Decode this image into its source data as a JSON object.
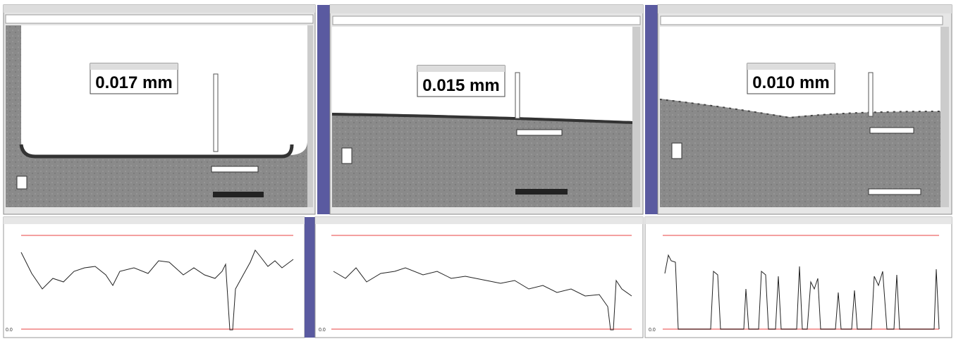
{
  "panels": [
    {
      "measurement": "0.017 mm",
      "graph": {
        "y_min_label": "0.0"
      }
    },
    {
      "measurement": "0.015 mm",
      "graph": {
        "y_min_label": "0.0"
      }
    },
    {
      "measurement": "0.010 mm",
      "graph": {
        "y_min_label": "0.0"
      }
    }
  ]
}
